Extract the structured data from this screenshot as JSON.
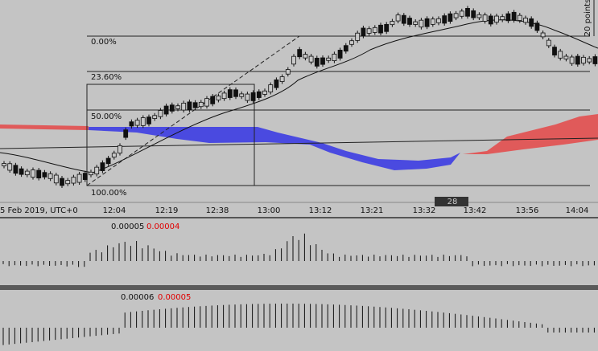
{
  "header": {
    "date_label": "5 Feb 2019, UTC+0",
    "scale_label": "20 points"
  },
  "fib_levels": [
    "0.00%",
    "23.60%",
    "50.00%",
    "100.00%"
  ],
  "time_axis": [
    "12:04",
    "12:19",
    "12:38",
    "13:00",
    "13:12",
    "13:21",
    "13:32",
    "13:42",
    "13:56",
    "14:04"
  ],
  "badge": "28",
  "indicators": [
    {
      "value": "0.00005",
      "signal": "0.00004"
    },
    {
      "value": "0.00006",
      "signal": "0.00005"
    }
  ]
}
